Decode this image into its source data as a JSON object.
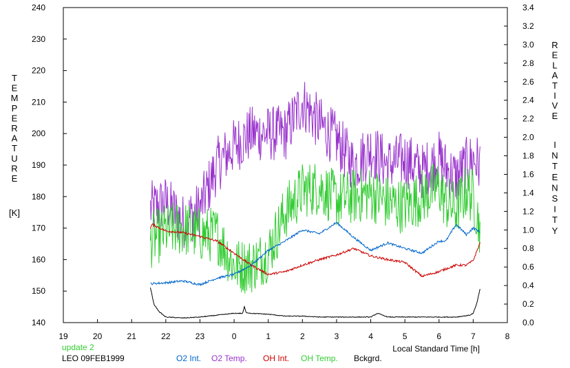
{
  "chart_data": {
    "type": "line",
    "left_axis": {
      "label_letters": [
        "T",
        "E",
        "M",
        "P",
        "E",
        "R",
        "A",
        "T",
        "U",
        "R",
        "E"
      ],
      "unit": "[K]",
      "ylim": [
        140,
        240
      ],
      "ticks": [
        140,
        150,
        160,
        170,
        180,
        190,
        200,
        210,
        220,
        230,
        240
      ]
    },
    "right_axis": {
      "label_letters_1": [
        "R",
        "E",
        "L",
        "A",
        "T",
        "I",
        "V",
        "E"
      ],
      "label_letters_2": [
        "I",
        "N",
        "T",
        "E",
        "N",
        "S",
        "I",
        "T",
        "Y"
      ],
      "ylim": [
        0.0,
        3.4
      ],
      "ticks": [
        "0.0",
        "0.2",
        "0.4",
        "0.6",
        "0.8",
        "1.0",
        "1.2",
        "1.4",
        "1.6",
        "1.8",
        "2.0",
        "2.2",
        "2.4",
        "2.6",
        "2.8",
        "3.0",
        "3.2",
        "3.4"
      ]
    },
    "x_axis": {
      "label": "Local Standard Time [h]",
      "tick_labels": [
        "19",
        "20",
        "21",
        "22",
        "23",
        "0",
        "1",
        "2",
        "3",
        "4",
        "5",
        "6",
        "7",
        "8"
      ],
      "xlim": [
        19,
        32
      ]
    },
    "grid": false,
    "series": [
      {
        "name": "O2 Int.",
        "color": "#0066cc",
        "axis": "right",
        "x": [
          21.55,
          22.0,
          22.5,
          23.0,
          23.5,
          24.0,
          24.5,
          25.0,
          25.5,
          26.0,
          26.5,
          27.0,
          27.5,
          28.0,
          28.5,
          29.0,
          29.5,
          30.0,
          30.2,
          30.5,
          30.8,
          31.0,
          31.2
        ],
        "y": [
          0.42,
          0.43,
          0.45,
          0.41,
          0.48,
          0.52,
          0.62,
          0.78,
          0.88,
          1.0,
          0.96,
          1.08,
          0.92,
          0.78,
          0.86,
          0.8,
          0.75,
          0.88,
          0.88,
          1.06,
          0.95,
          1.02,
          0.98
        ]
      },
      {
        "name": "O2 Temp.",
        "color": "#9933cc",
        "axis": "left",
        "x": [
          21.55,
          22.0,
          22.5,
          23.0,
          23.5,
          24.0,
          24.5,
          25.0,
          25.5,
          26.0,
          26.5,
          27.0,
          27.5,
          28.0,
          28.5,
          29.0,
          29.5,
          30.0,
          30.2,
          30.5,
          30.8,
          31.0,
          31.2
        ],
        "y": [
          176,
          178,
          172,
          176,
          190,
          196,
          200,
          200,
          200,
          210,
          203,
          198,
          190,
          195,
          190,
          192,
          188,
          192,
          189,
          186,
          190,
          192,
          190
        ]
      },
      {
        "name": "OH Int.",
        "color": "#cc0000",
        "axis": "right",
        "x": [
          21.55,
          21.6,
          22.0,
          22.5,
          23.0,
          23.5,
          24.0,
          24.5,
          25.0,
          25.5,
          26.0,
          26.5,
          27.0,
          27.5,
          28.0,
          28.5,
          29.0,
          29.5,
          30.0,
          30.2,
          30.5,
          30.8,
          31.0,
          31.2
        ],
        "y": [
          1.02,
          1.06,
          0.99,
          0.97,
          0.93,
          0.88,
          0.75,
          0.62,
          0.52,
          0.55,
          0.62,
          0.68,
          0.73,
          0.8,
          0.72,
          0.68,
          0.65,
          0.5,
          0.55,
          0.58,
          0.62,
          0.62,
          0.67,
          0.86
        ]
      },
      {
        "name": "OH Temp.",
        "color": "#33cc33",
        "axis": "left",
        "x": [
          21.55,
          22.0,
          22.5,
          23.0,
          23.5,
          24.0,
          24.5,
          25.0,
          25.5,
          26.0,
          26.5,
          27.0,
          27.5,
          28.0,
          28.5,
          29.0,
          29.5,
          30.0,
          30.2,
          30.5,
          30.8,
          31.0,
          31.2
        ],
        "y": [
          166,
          169,
          170,
          168,
          168,
          158,
          158,
          162,
          175,
          182,
          183,
          179,
          180,
          181,
          178,
          177,
          180,
          183,
          178,
          176,
          182,
          180,
          170
        ]
      },
      {
        "name": "Bckgrd.",
        "color": "#000000",
        "axis": "right",
        "x": [
          21.55,
          21.65,
          21.8,
          22.0,
          22.5,
          23.0,
          23.5,
          24.0,
          24.25,
          24.3,
          24.35,
          24.5,
          25.0,
          25.5,
          26.0,
          26.5,
          27.0,
          27.5,
          28.0,
          28.2,
          28.5,
          29.0,
          29.5,
          30.0,
          30.5,
          30.9,
          31.0,
          31.1,
          31.2
        ],
        "y": [
          0.38,
          0.2,
          0.12,
          0.06,
          0.05,
          0.06,
          0.08,
          0.1,
          0.1,
          0.17,
          0.11,
          0.1,
          0.09,
          0.07,
          0.07,
          0.06,
          0.06,
          0.06,
          0.06,
          0.1,
          0.06,
          0.06,
          0.06,
          0.06,
          0.06,
          0.08,
          0.1,
          0.2,
          0.36
        ]
      }
    ]
  },
  "footer": {
    "update": "update 2",
    "station": "LEO 09FEB1999"
  },
  "colors": {
    "update": "#33cc33"
  }
}
